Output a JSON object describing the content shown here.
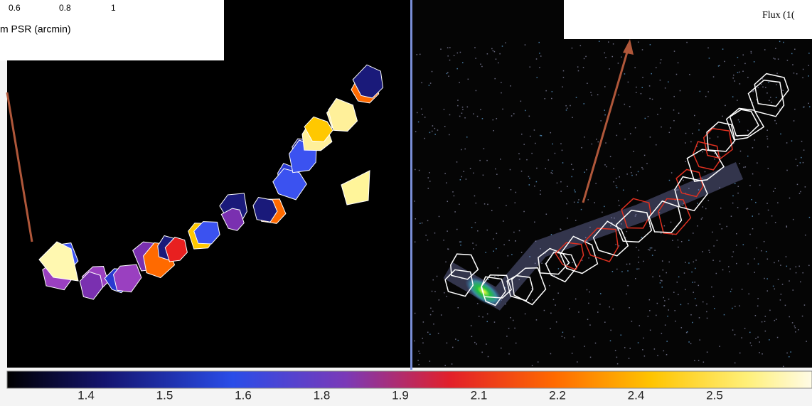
{
  "inset": {
    "axis_ticks": [
      "0.6",
      "0.8",
      "1"
    ],
    "axis_label": "m PSR (arcmin)"
  },
  "flux_label": "Flux (1(",
  "colorbar": {
    "ticks": [
      "1.4",
      "1.5",
      "1.6",
      "1.8",
      "1.9",
      "2.1",
      "2.2",
      "2.4",
      "2.5"
    ]
  }
}
